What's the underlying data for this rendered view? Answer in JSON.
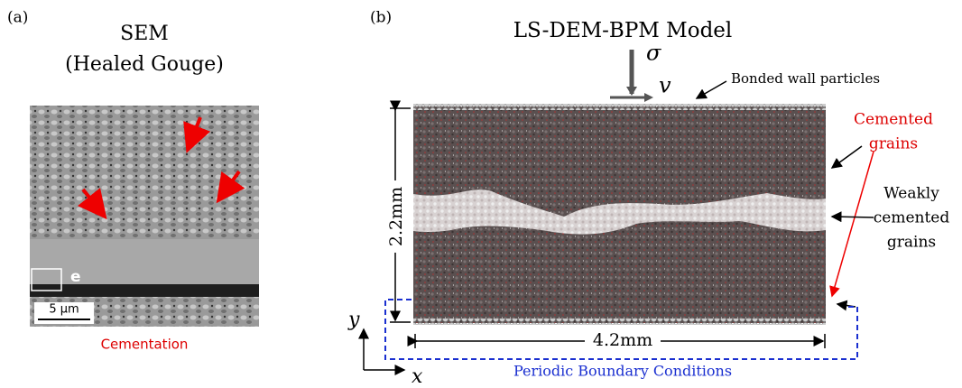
{
  "panel_a": {
    "label": "(a)",
    "title": "SEM",
    "subtitle": "(Healed Gouge)",
    "inset_label": "e",
    "scale_bar": "5 µm",
    "caption": "Cementation"
  },
  "panel_b": {
    "label": "(b)",
    "title": "LS-DEM-BPM Model",
    "stress_symbol": "σ",
    "velocity_symbol": "v",
    "wall_label": "Bonded wall particles",
    "cemented_label": [
      "Cemented",
      "grains"
    ],
    "weak_label": [
      "Weakly",
      "cemented",
      "grains"
    ],
    "height_label": "2.2mm",
    "width_label": "4.2mm",
    "y_axis": "y",
    "x_axis": "x",
    "boundary_label": "Periodic Boundary Conditions"
  }
}
